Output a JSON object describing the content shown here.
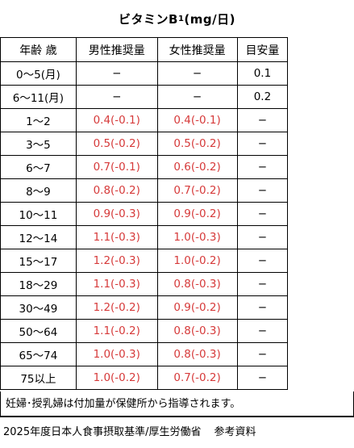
{
  "title": {
    "main": "ビタミンB",
    "sub": "1",
    "unit": "(mg/日)"
  },
  "headers": [
    "年齢 歳",
    "男性推奨量",
    "女性推奨量",
    "目安量"
  ],
  "rows": [
    {
      "age": "0〜5(月)",
      "male": "−",
      "female": "−",
      "ai": "0.1"
    },
    {
      "age": "6〜11(月)",
      "male": "−",
      "female": "−",
      "ai": "0.2"
    },
    {
      "age": "1〜2",
      "male": "0.4(-0.1)",
      "female": "0.4(-0.1)",
      "ai": "−"
    },
    {
      "age": "3〜5",
      "male": "0.5(-0.2)",
      "female": "0.5(-0.2)",
      "ai": "−"
    },
    {
      "age": "6〜7",
      "male": "0.7(-0.1)",
      "female": "0.6(-0.2)",
      "ai": "−"
    },
    {
      "age": "8〜9",
      "male": "0.8(-0.2)",
      "female": "0.7(-0.2)",
      "ai": "−"
    },
    {
      "age": "10〜11",
      "male": "0.9(-0.3)",
      "female": "0.9(-0.2)",
      "ai": "−"
    },
    {
      "age": "12〜14",
      "male": "1.1(-0.3)",
      "female": "1.0(-0.3)",
      "ai": "−"
    },
    {
      "age": "15〜17",
      "male": "1.2(-0.3)",
      "female": "1.0(-0.2)",
      "ai": "−"
    },
    {
      "age": "18〜29",
      "male": "1.1(-0.3)",
      "female": "0.8(-0.3)",
      "ai": "−"
    },
    {
      "age": "30〜49",
      "male": "1.2(-0.2)",
      "female": "0.9(-0.2)",
      "ai": "−"
    },
    {
      "age": "50〜64",
      "male": "1.1(-0.2)",
      "female": "0.8(-0.3)",
      "ai": "−"
    },
    {
      "age": "65〜74",
      "male": "1.0(-0.3)",
      "female": "0.8(-0.3)",
      "ai": "−"
    },
    {
      "age": "75以上",
      "male": "1.0(-0.2)",
      "female": "0.7(-0.2)",
      "ai": "−"
    }
  ],
  "note": "妊婦･授乳婦は付加量が保健所から指導されます。",
  "source": {
    "text": "2025年度日本人食事摂取基準/厚生労働省",
    "ref": "参考資料"
  },
  "colors": {
    "value_red": "#d63a3a",
    "border": "#000000"
  }
}
